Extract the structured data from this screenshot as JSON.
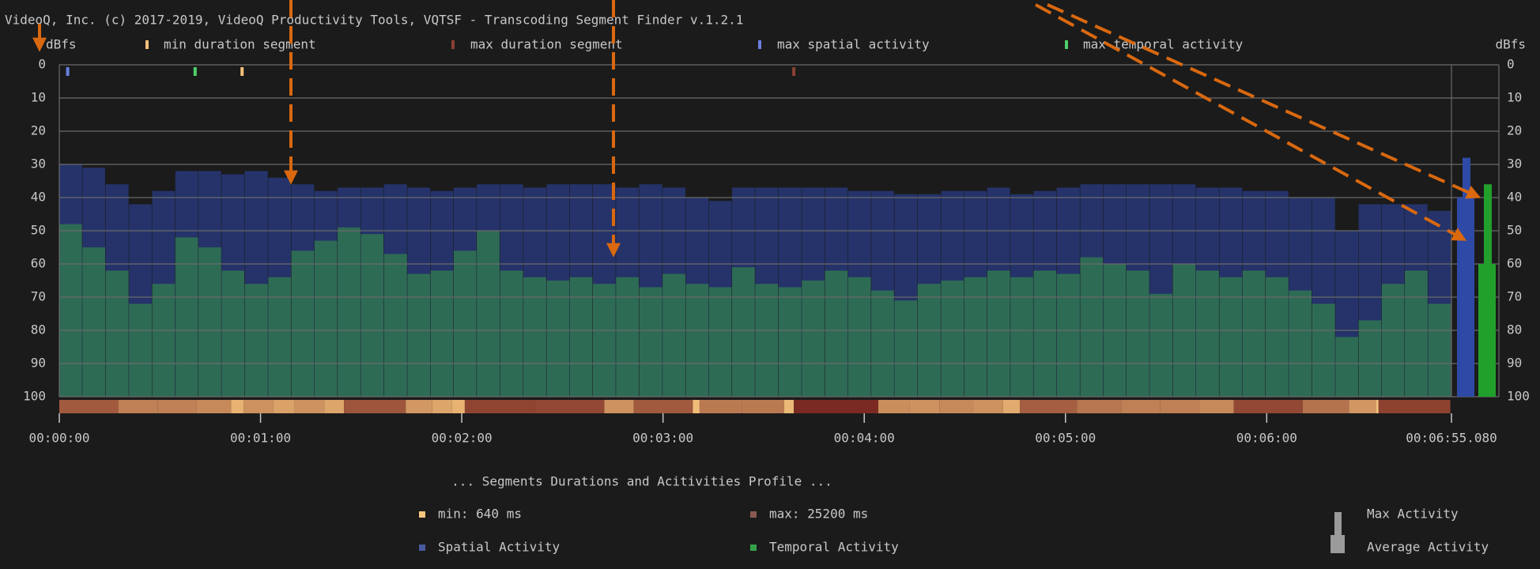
{
  "chart_data": {
    "type": "bar",
    "title": "VideoQ, Inc. (c) 2017-2019, VideoQ Productivity Tools, VQTSF - Transcoding Segment Finder v.1.2.1",
    "y_label_left": "dBfs",
    "y_label_right": "dBfs",
    "ylim": [
      0,
      100
    ],
    "y_inverted": true,
    "yticks": [
      0,
      10,
      20,
      30,
      40,
      50,
      60,
      70,
      80,
      90,
      100
    ],
    "grid": true,
    "xlim": [
      0,
      415.08
    ],
    "xticks": [
      {
        "value": 0,
        "label": "00:00:00"
      },
      {
        "value": 60,
        "label": "00:01:00"
      },
      {
        "value": 120,
        "label": "00:02:00"
      },
      {
        "value": 180,
        "label": "00:03:00"
      },
      {
        "value": 240,
        "label": "00:04:00"
      },
      {
        "value": 300,
        "label": "00:05:00"
      },
      {
        "value": 360,
        "label": "00:06:00"
      },
      {
        "value": 415.08,
        "label": "00:06:55.080"
      }
    ],
    "x": [
      0,
      6.9,
      13.8,
      20.8,
      27.7,
      34.6,
      41.5,
      48.4,
      55.3,
      62.3,
      69.2,
      76.1,
      83.0,
      89.9,
      96.8,
      103.8,
      110.7,
      117.6,
      124.5,
      131.4,
      138.4,
      145.3,
      152.2,
      159.1,
      166.0,
      172.9,
      179.9,
      186.8,
      193.7,
      200.6,
      207.5,
      214.4,
      221.4,
      228.3,
      235.2,
      242.1,
      249.0,
      255.9,
      262.9,
      269.8,
      276.7,
      283.6,
      290.5,
      297.4,
      304.4,
      311.3,
      318.2,
      325.1,
      332.0,
      338.9,
      345.9,
      352.8,
      359.7,
      366.6,
      373.5,
      380.5,
      387.4,
      394.3,
      401.2,
      408.1
    ],
    "series": [
      {
        "name": "Spatial Activity",
        "color": "#25336a",
        "legend_color": "#4a5aa0",
        "values": [
          30,
          31,
          36,
          42,
          38,
          32,
          32,
          33,
          32,
          34,
          36,
          38,
          37,
          37,
          36,
          37,
          38,
          37,
          36,
          36,
          37,
          36,
          36,
          36,
          37,
          36,
          37,
          40,
          41,
          37,
          37,
          37,
          37,
          37,
          38,
          38,
          39,
          39,
          38,
          38,
          37,
          39,
          38,
          37,
          36,
          36,
          36,
          36,
          36,
          37,
          37,
          38,
          38,
          40,
          40,
          50,
          42,
          42,
          42,
          44
        ]
      },
      {
        "name": "Temporal Activity",
        "color": "#2e6b55",
        "legend_color": "#35a04a",
        "values": [
          48,
          55,
          62,
          72,
          66,
          52,
          55,
          62,
          66,
          64,
          56,
          53,
          49,
          51,
          57,
          63,
          62,
          56,
          50,
          62,
          64,
          65,
          64,
          66,
          64,
          67,
          63,
          66,
          67,
          61,
          66,
          67,
          65,
          62,
          64,
          68,
          71,
          66,
          65,
          64,
          62,
          64,
          62,
          63,
          58,
          60,
          62,
          69,
          60,
          62,
          64,
          62,
          64,
          68,
          72,
          82,
          77,
          66,
          62,
          72
        ]
      }
    ],
    "markers": [
      {
        "name": "min duration segment",
        "color": "#f4c07a",
        "x": 54.5
      },
      {
        "name": "max duration segment",
        "color": "#8b4033",
        "x": 219
      },
      {
        "name": "max spatial activity",
        "color": "#6a80e0",
        "x": 2.5
      },
      {
        "name": "max temporal activity",
        "color": "#4fd06a",
        "x": 40.5
      }
    ],
    "segments": {
      "title": "... Segments Durations and Acitivities Profile ...",
      "min_label": "min: 640 ms",
      "max_label": "max: 25200 ms",
      "min_color": "#f7c67e",
      "max_color": "#7a2a22",
      "durations_ms": [
        17600,
        11700,
        11700,
        10200,
        3800,
        8800,
        6400,
        8800,
        5900,
        18400,
        7900,
        5900,
        3800,
        21100,
        20500,
        8800,
        17600,
        2000,
        12600,
        12600,
        2900,
        25200,
        9400,
        8800,
        10200,
        8800,
        5000,
        17000,
        13200,
        11700,
        11700,
        10200,
        20500,
        13800,
        8200,
        640,
        21400
      ]
    },
    "activity_summary": {
      "max_label": "Max Activity",
      "average_label": "Average Activity",
      "spatial": {
        "max": 28,
        "average": 40,
        "color": "#2f4aa6"
      },
      "temporal": {
        "max": 36,
        "average": 60,
        "color": "#22a02c"
      }
    }
  }
}
